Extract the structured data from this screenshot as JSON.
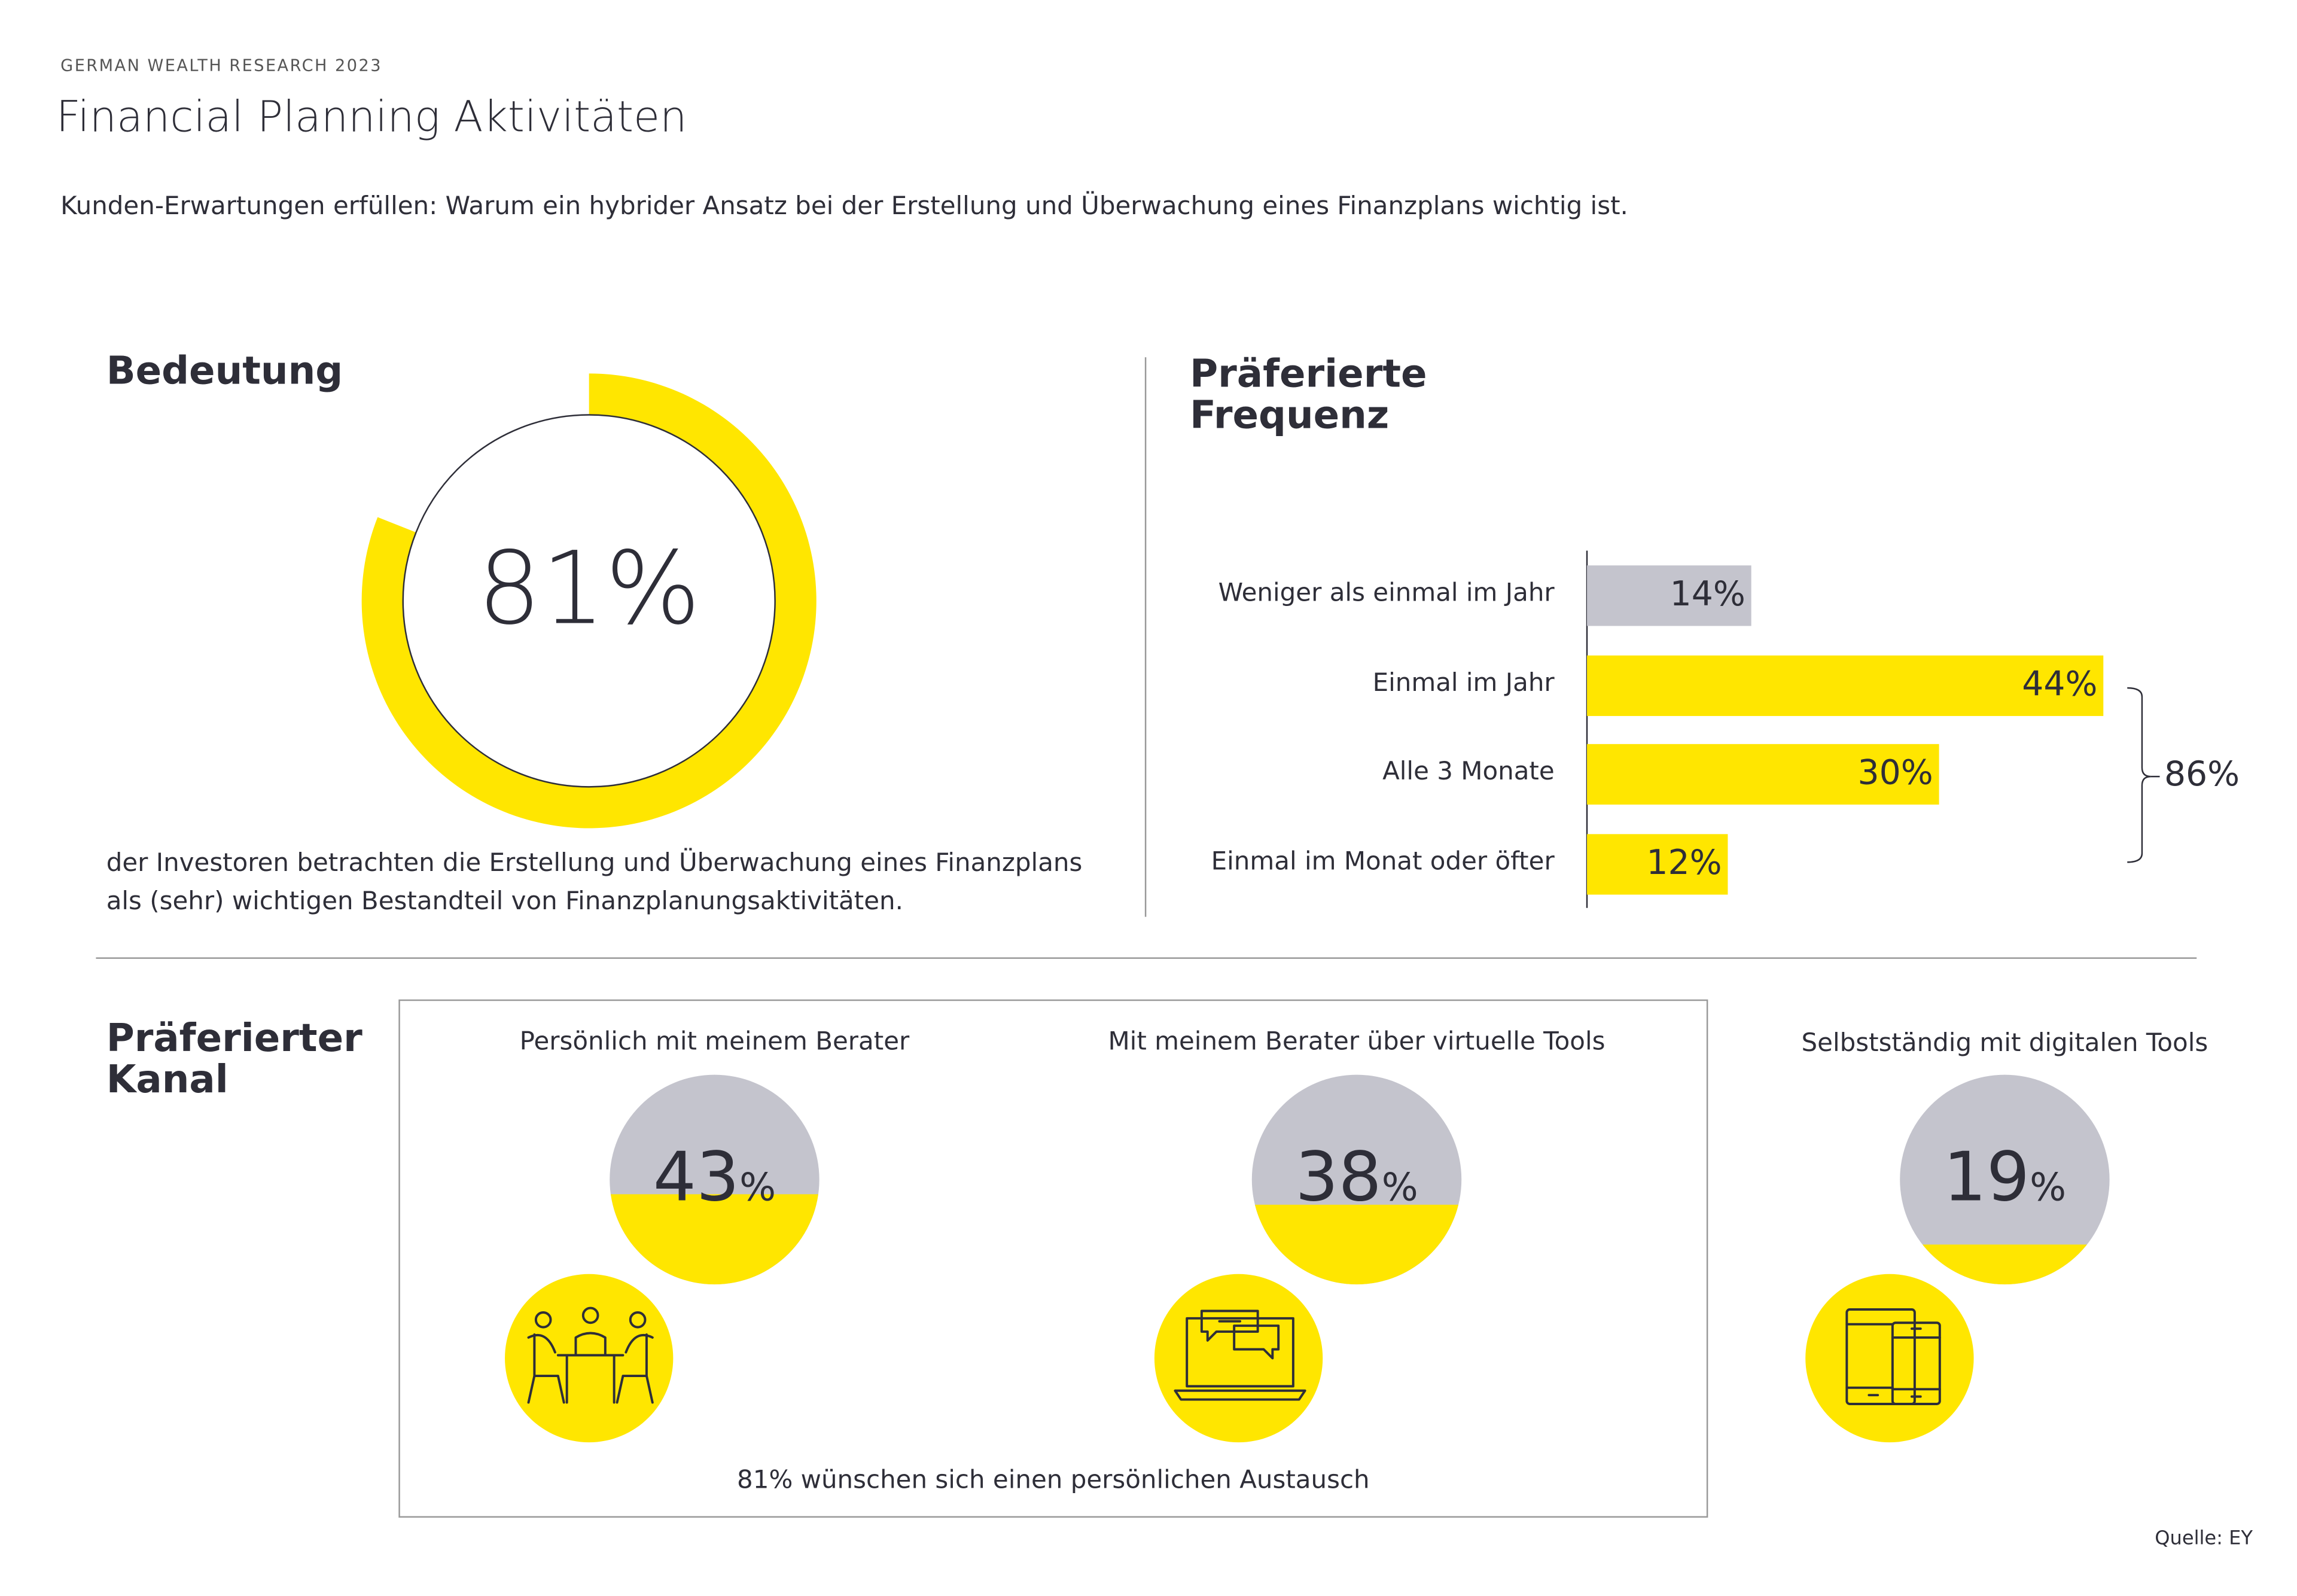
{
  "header": {
    "eyebrow": "GERMAN WEALTH RESEARCH 2023",
    "title": "Financial Planning Aktivitäten",
    "subtitle": "Kunden-Erwartungen erfüllen: Warum ein hybrider Ansatz bei der Erstellung und Überwachung eines Finanzplans wichtig ist."
  },
  "colors": {
    "yellow": "#ffe600",
    "gray": "#c4c4cd",
    "text": "#2e2e38"
  },
  "importance": {
    "heading": "Bedeutung",
    "value_label": "81%",
    "description_line1": "der Investoren betrachten die Erstellung und Überwachung eines Finanzplans",
    "description_line2": "als (sehr) wichtigen Bestandteil von Finanzplanungsaktivitäten."
  },
  "frequency": {
    "heading_line1": "Präferierte",
    "heading_line2": "Frequenz",
    "bracket_total": "86%"
  },
  "channel": {
    "heading_line1": "Präferierter",
    "heading_line2": "Kanal",
    "items": [
      {
        "label": "Persönlich mit meinem Berater",
        "value": "43",
        "unit": "%",
        "icon": "meeting-people-icon"
      },
      {
        "label": "Mit meinem Berater über virtuelle Tools",
        "value": "38",
        "unit": "%",
        "icon": "laptop-chat-icon"
      },
      {
        "label": "Selbstständig mit digitalen Tools",
        "value": "19",
        "unit": "%",
        "icon": "tablet-phone-icon"
      }
    ],
    "box_note": "81% wünschen sich einen persönlichen Austausch"
  },
  "source": "Quelle: EY",
  "chart_data": [
    {
      "type": "pie",
      "title": "Bedeutung",
      "values": [
        81,
        19
      ],
      "labels": [
        "81%",
        ""
      ]
    },
    {
      "type": "bar",
      "title": "Präferierte Frequenz",
      "categories": [
        "Weniger als einmal im Jahr",
        "Einmal im Jahr",
        "Alle 3 Monate",
        "Einmal im Monat oder öfter"
      ],
      "values": [
        14,
        44,
        30,
        12
      ],
      "data_labels": [
        "14%",
        "44%",
        "30%",
        "12%"
      ],
      "bar_colors": [
        "#c4c4cd",
        "#ffe600",
        "#ffe600",
        "#ffe600"
      ],
      "annotation": "86%"
    },
    {
      "type": "pie",
      "title": "Präferierter Kanal",
      "categories": [
        "Persönlich mit meinem Berater",
        "Mit meinem Berater über virtuelle Tools",
        "Selbstständig mit digitalen Tools"
      ],
      "values": [
        43,
        38,
        19
      ]
    }
  ]
}
